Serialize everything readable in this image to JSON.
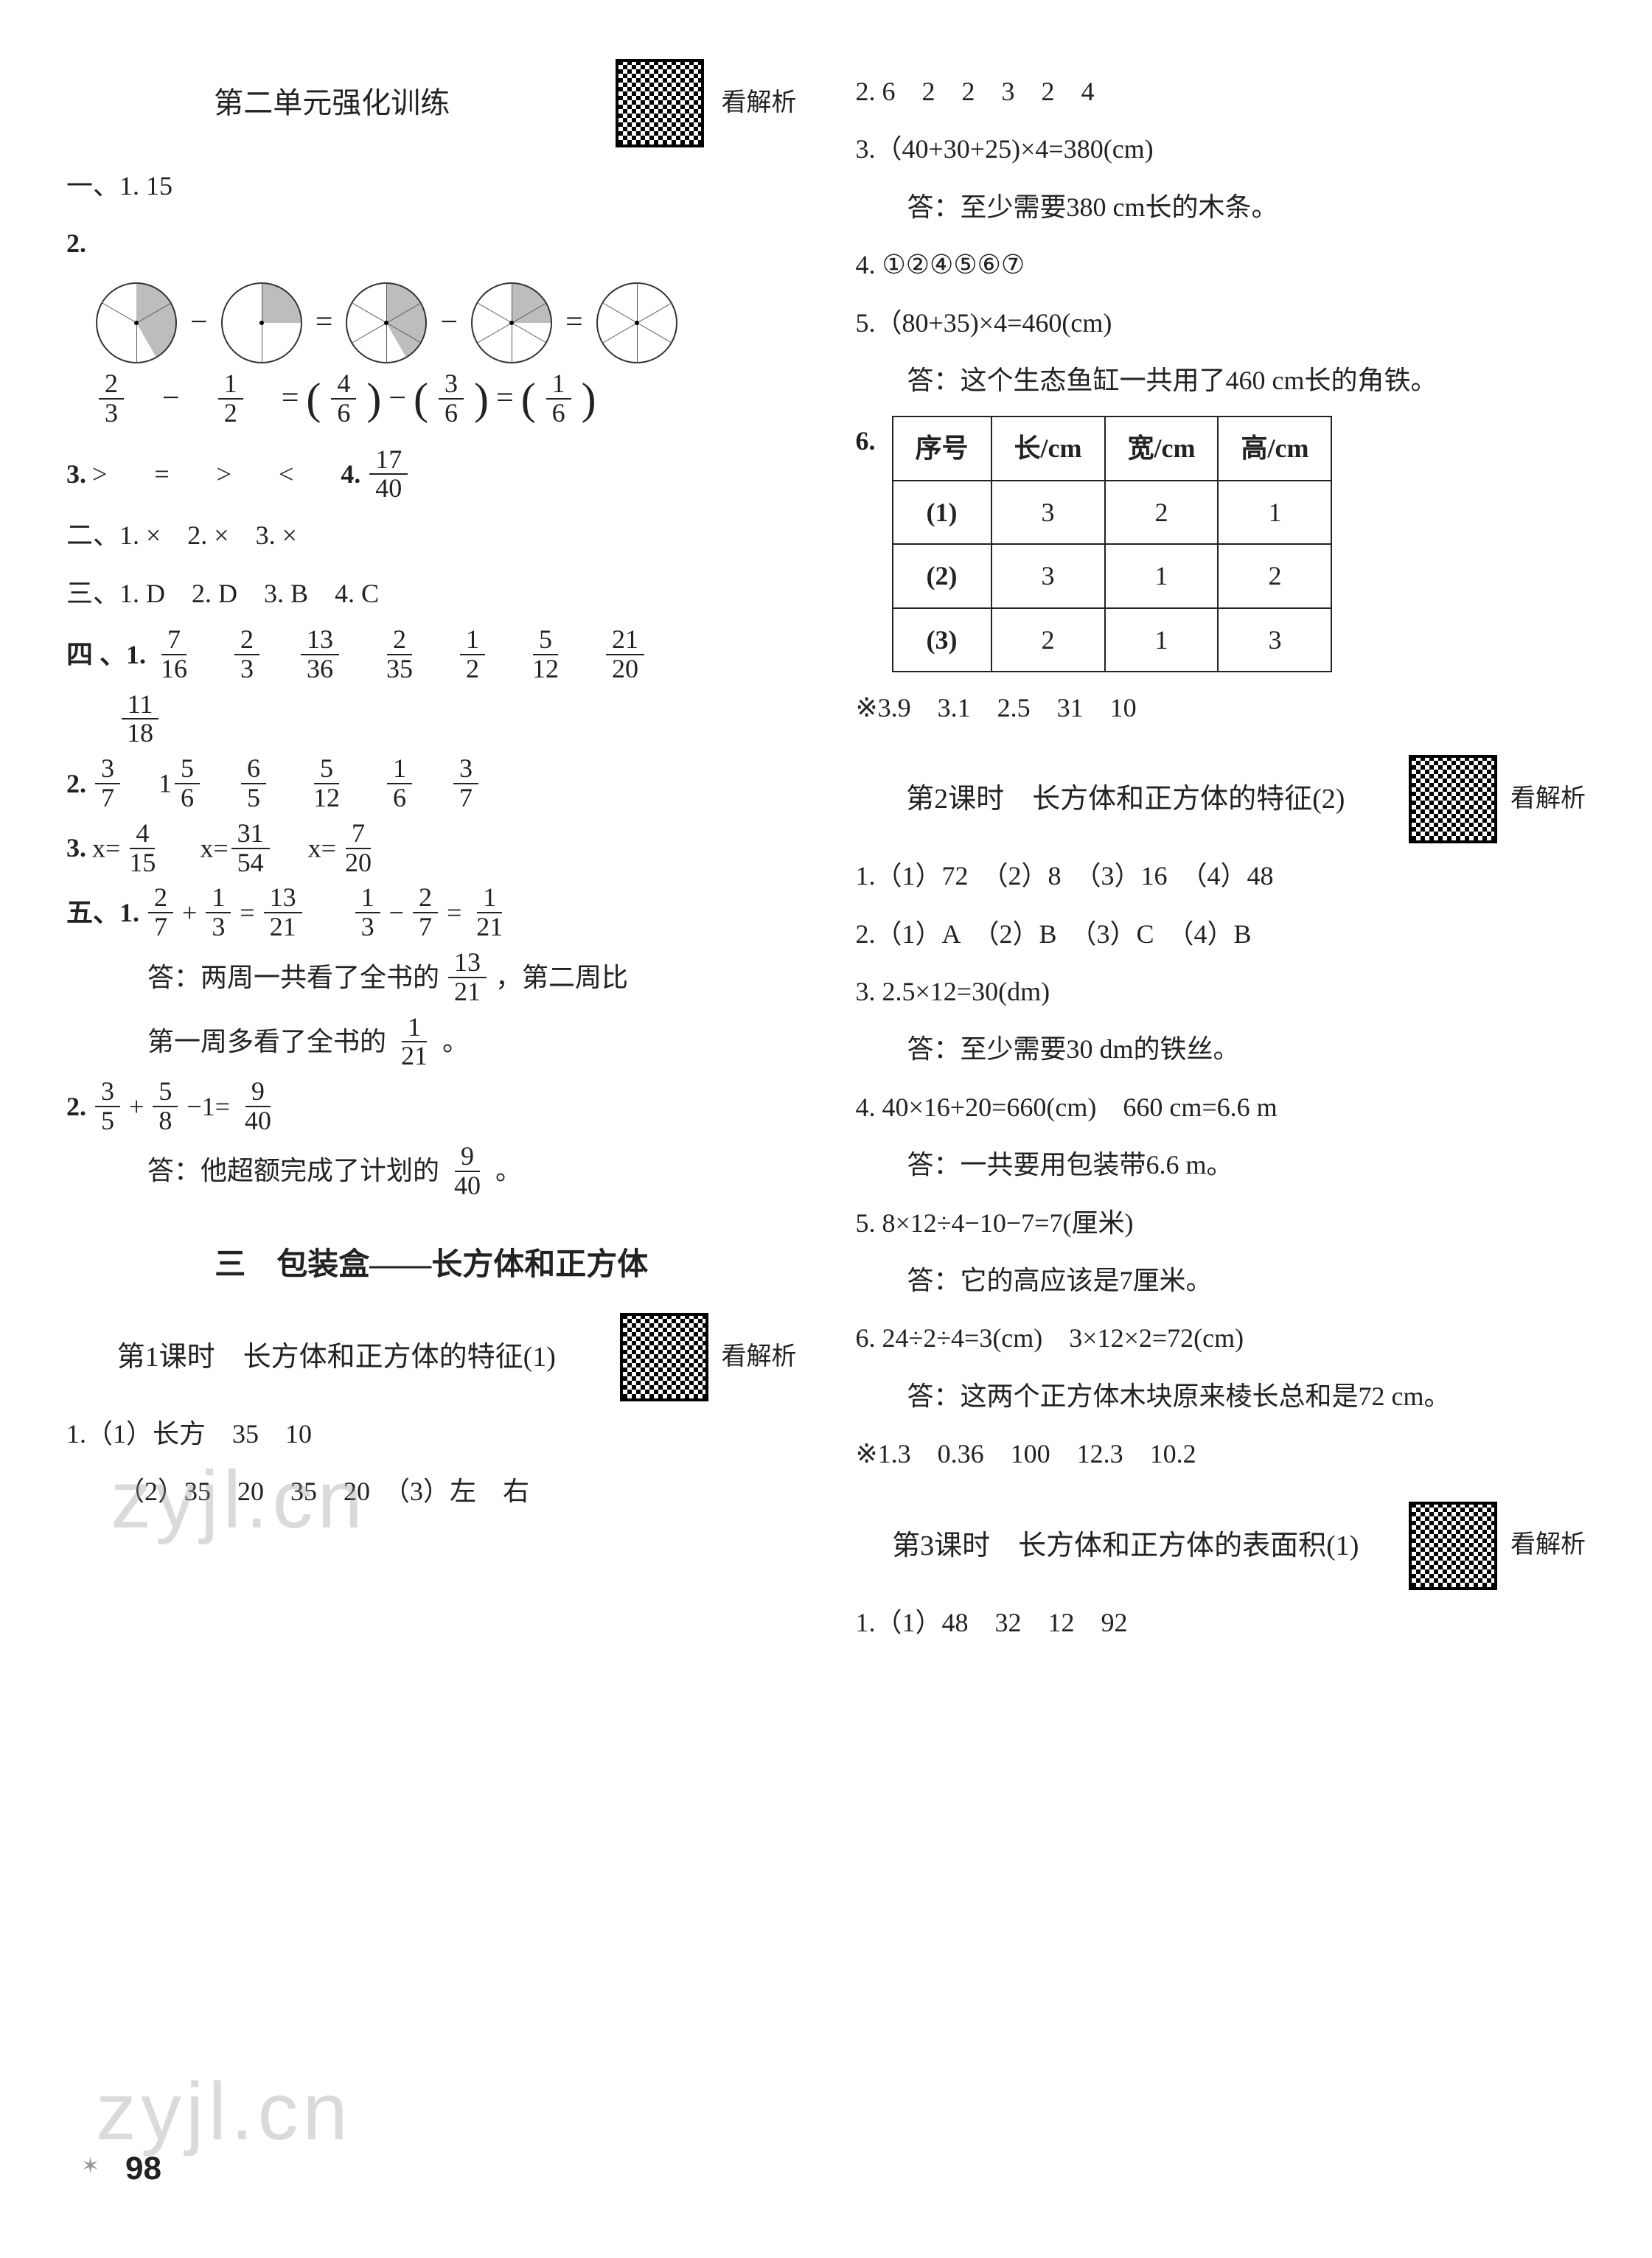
{
  "left": {
    "title": "第二单元强化训练",
    "qr_label": "看解析",
    "l1": "一、1. 15",
    "q2_label": "2.",
    "pies": [
      {
        "segments": 3,
        "fill": [
          true,
          true,
          false
        ]
      },
      {
        "segments": 2,
        "fill": [
          true,
          false
        ]
      },
      {
        "segments": 6,
        "fill": [
          true,
          true,
          true,
          true,
          false,
          false
        ]
      },
      {
        "segments": 6,
        "fill": [
          true,
          true,
          true,
          false,
          false,
          false
        ]
      },
      {
        "segments": 6,
        "fill": [
          true,
          false,
          false,
          false,
          false,
          false
        ]
      }
    ],
    "fracs2": {
      "a": {
        "n": "2",
        "d": "3"
      },
      "b": {
        "n": "1",
        "d": "2"
      },
      "c": {
        "n": "4",
        "d": "6"
      },
      "d": {
        "n": "3",
        "d": "6"
      },
      "e": {
        "n": "1",
        "d": "6"
      }
    },
    "q3": {
      "label": "3.",
      "vals": [
        ">",
        "=",
        ">",
        "<"
      ],
      "part4label": "4.",
      "frac": {
        "n": "17",
        "d": "40"
      }
    },
    "sec2": "二、1. ×　2. ×　3. ×",
    "sec3": "三、1. D　2. D　3. B　4. C",
    "sec4_label": "四 、1.",
    "sec4_fracs1": [
      {
        "n": "7",
        "d": "16"
      },
      {
        "n": "2",
        "d": "3"
      },
      {
        "n": "13",
        "d": "36"
      },
      {
        "n": "2",
        "d": "35"
      },
      {
        "n": "1",
        "d": "2"
      },
      {
        "n": "5",
        "d": "12"
      },
      {
        "n": "21",
        "d": "20"
      }
    ],
    "sec4_fracs1b": [
      {
        "n": "11",
        "d": "18"
      }
    ],
    "sec4_2_label": "2.",
    "sec4_2": [
      {
        "n": "3",
        "d": "7"
      },
      {
        "pre": "1",
        "n": "5",
        "d": "6"
      },
      {
        "n": "6",
        "d": "5"
      },
      {
        "n": "5",
        "d": "12"
      },
      {
        "n": "1",
        "d": "6"
      },
      {
        "n": "3",
        "d": "7"
      }
    ],
    "sec4_3_label": "3.",
    "sec4_3": [
      {
        "pre": "x=",
        "n": "4",
        "d": "15"
      },
      {
        "pre": "x=",
        "n": "31",
        "d": "54"
      },
      {
        "pre": "x=",
        "n": "7",
        "d": "20"
      }
    ],
    "sec5_label": "五、1.",
    "sec5_1": {
      "a": {
        "n": "2",
        "d": "7"
      },
      "b": {
        "n": "1",
        "d": "3"
      },
      "c": {
        "n": "13",
        "d": "21"
      },
      "d": {
        "n": "1",
        "d": "3"
      },
      "e": {
        "n": "2",
        "d": "7"
      },
      "f": {
        "n": "1",
        "d": "21"
      }
    },
    "ans5a_pre": "答：两周一共看了全书的",
    "ans5a_frac": {
      "n": "13",
      "d": "21"
    },
    "ans5a_post": "，第二周比",
    "ans5b_pre": "第一周多看了全书的",
    "ans5b_frac": {
      "n": "1",
      "d": "21"
    },
    "ans5b_post": "。",
    "sec5_2_label": "2.",
    "sec5_2": {
      "a": {
        "n": "3",
        "d": "5"
      },
      "b": {
        "n": "5",
        "d": "8"
      },
      "c": {
        "n": "9",
        "d": "40"
      }
    },
    "ans5c_pre": "答：他超额完成了计划的",
    "ans5c_frac": {
      "n": "9",
      "d": "40"
    },
    "ans5c_post": "。",
    "chapter": "三　包装盒——长方体和正方体",
    "lesson1": "第1课时　长方体和正方体的特征(1)",
    "l1_1": "1.（1）长方　35　10",
    "l1_2": "（2）35　20　35　20　（3）左　右"
  },
  "right": {
    "r2": "2. 6　2　2　3　2　4",
    "r3a": "3.（40+30+25)×4=380(cm)",
    "r3b": "答：至少需要380 cm长的木条。",
    "r4": "4. ①②④⑤⑥⑦",
    "r5a": "5.（80+35)×4=460(cm)",
    "r5b": "答：这个生态鱼缸一共用了460 cm长的角铁。",
    "r6_label": "6.",
    "table": {
      "headers": [
        "序号",
        "长/cm",
        "宽/cm",
        "高/cm"
      ],
      "rows": [
        [
          "(1)",
          "3",
          "2",
          "1"
        ],
        [
          "(2)",
          "3",
          "1",
          "2"
        ],
        [
          "(3)",
          "2",
          "1",
          "3"
        ]
      ]
    },
    "star1": "※3.9　3.1　2.5　31　10",
    "lesson2": "第2课时　长方体和正方体的特征(2)",
    "qr_label": "看解析",
    "l2_1": "1.（1）72　（2）8　（3）16　（4）48",
    "l2_2": "2.（1）A　（2）B　（3）C　（4）B",
    "l2_3a": "3. 2.5×12=30(dm)",
    "l2_3b": "答：至少需要30 dm的铁丝。",
    "l2_4a": "4. 40×16+20=660(cm)　660 cm=6.6 m",
    "l2_4b": "答：一共要用包装带6.6 m。",
    "l2_5a": "5. 8×12÷4−10−7=7(厘米)",
    "l2_5b": "答：它的高应该是7厘米。",
    "l2_6a": "6. 24÷2÷4=3(cm)　3×12×2=72(cm)",
    "l2_6b": "答：这两个正方体木块原来棱长总和是72 cm。",
    "star2": "※1.3　0.36　100　12.3　10.2",
    "lesson3": "第3课时　长方体和正方体的表面积(1)",
    "l3_1": "1.（1）48　32　12　92"
  },
  "watermark": "zyjl.cn",
  "pagenum": "98",
  "colors": {
    "text": "#222222",
    "bg": "#ffffff",
    "border": "#222222",
    "wm": "rgba(150,150,150,0.35)",
    "pie_fill": "#bdbdbd"
  }
}
